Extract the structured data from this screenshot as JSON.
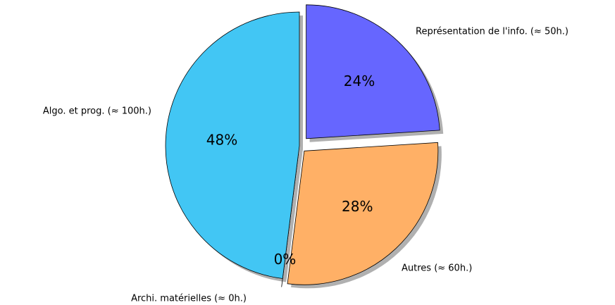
{
  "chart_data": {
    "type": "pie",
    "categories": [
      "Représentation de l'info. (≈ 50h.)",
      "Autres (≈ 60h.)",
      "Archi. matérielles (≈ 0h.)",
      "Algo. et prog. (≈ 100h.)"
    ],
    "values": [
      24,
      28,
      0,
      48
    ],
    "value_labels": [
      "24%",
      "28%",
      "0%",
      "48%"
    ],
    "colors": [
      "#6666ff",
      "#ffb066",
      "#ffffff",
      "#42c6f4"
    ]
  }
}
